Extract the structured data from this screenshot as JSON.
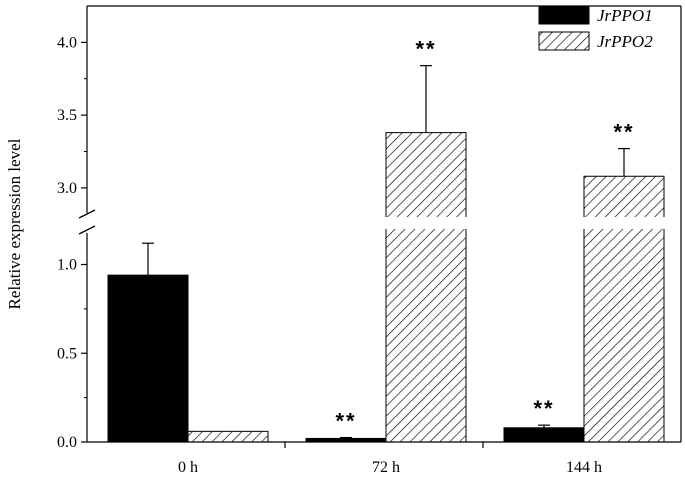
{
  "chart_data": {
    "type": "bar",
    "title": "",
    "xlabel": "",
    "ylabel": "Relative expression level",
    "categories": [
      "0 h",
      "72 h",
      "144 h"
    ],
    "axis_break": {
      "between": [
        1.2,
        2.8
      ]
    },
    "ylim_lower": [
      0,
      1.2
    ],
    "ylim_upper": [
      2.8,
      4.25
    ],
    "yticks_lower": [
      "0.0",
      "0.5",
      "1.0"
    ],
    "yticks_upper": [
      "3.0",
      "3.5",
      "4.0"
    ],
    "legend_position": "top-right",
    "series": [
      {
        "name": "JrPPO1",
        "color": "#000000",
        "fill": "solid",
        "values": [
          0.94,
          0.02,
          0.08
        ],
        "errors": [
          0.18,
          0.005,
          0.015
        ],
        "significance": [
          "",
          "**",
          "**"
        ]
      },
      {
        "name": "JrPPO2",
        "color": "#000000",
        "fill": "diagonal-hatch",
        "values": [
          0.06,
          3.38,
          3.08
        ],
        "errors": [
          0,
          0.46,
          0.19
        ],
        "significance": [
          "",
          "**",
          "**"
        ]
      }
    ]
  }
}
